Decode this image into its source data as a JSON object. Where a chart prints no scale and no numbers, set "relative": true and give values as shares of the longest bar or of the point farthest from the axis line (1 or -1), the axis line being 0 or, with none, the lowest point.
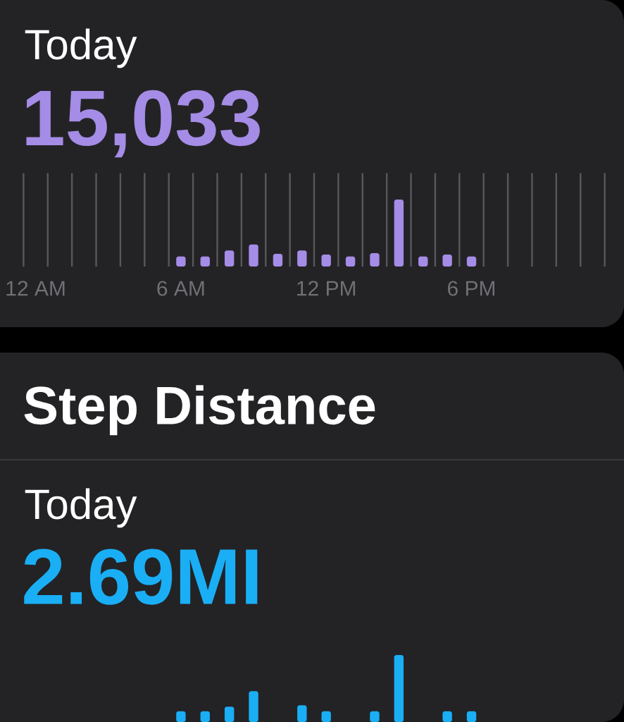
{
  "chart_data": [
    {
      "type": "bar",
      "subtitle": "Today",
      "annotations": [
        "15,033"
      ],
      "categories": [
        "12 AM",
        null,
        null,
        null,
        null,
        null,
        "6 AM",
        null,
        null,
        null,
        null,
        null,
        "12 PM",
        null,
        null,
        null,
        null,
        null,
        "6 PM",
        null,
        null,
        null,
        null,
        null
      ],
      "values": [
        null,
        null,
        null,
        null,
        null,
        null,
        0.15,
        0.15,
        0.24,
        0.33,
        0.19,
        0.24,
        0.18,
        0.15,
        0.2,
        1,
        0.15,
        0.18,
        0.15,
        null,
        null,
        null,
        null,
        null
      ],
      "color": "#a58ce6",
      "relative": true,
      "grid": "x",
      "tick_labels": "x"
    },
    {
      "type": "bar",
      "title": "Step Distance",
      "subtitle": "Today",
      "annotations": [
        "2.69MI"
      ],
      "categories": [
        null,
        null,
        null,
        null,
        null,
        null,
        null,
        null,
        null,
        null,
        null,
        null,
        null,
        null,
        null,
        null,
        null,
        null,
        null,
        null,
        null,
        null,
        null,
        null
      ],
      "values": [
        null,
        null,
        null,
        null,
        null,
        null,
        0.16,
        0.16,
        0.23,
        0.46,
        null,
        0.25,
        0.16,
        null,
        0.16,
        1,
        null,
        0.16,
        0.16,
        null,
        null,
        null,
        null,
        null
      ],
      "color": "#1aaef5",
      "relative": true,
      "grid": "x",
      "tick_labels": false
    }
  ]
}
